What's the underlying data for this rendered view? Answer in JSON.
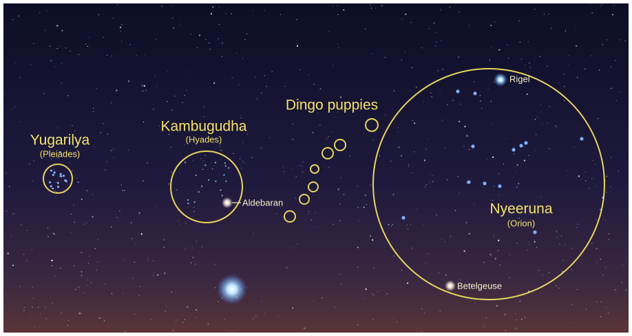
{
  "groups": {
    "yugarilya": {
      "name": "Yugarilya",
      "subtitle": "(Pleiades)"
    },
    "kambugudha": {
      "name": "Kambugudha",
      "subtitle": "(Hyades)"
    },
    "dingo": {
      "name": "Dingo puppies"
    },
    "nyeeruna": {
      "name": "Nyeeruna",
      "subtitle": "(Orion)"
    }
  },
  "stars": {
    "aldebaran": "Aldebaran",
    "rigel": "Rigel",
    "betelgeuse": "Betelgeuse"
  }
}
